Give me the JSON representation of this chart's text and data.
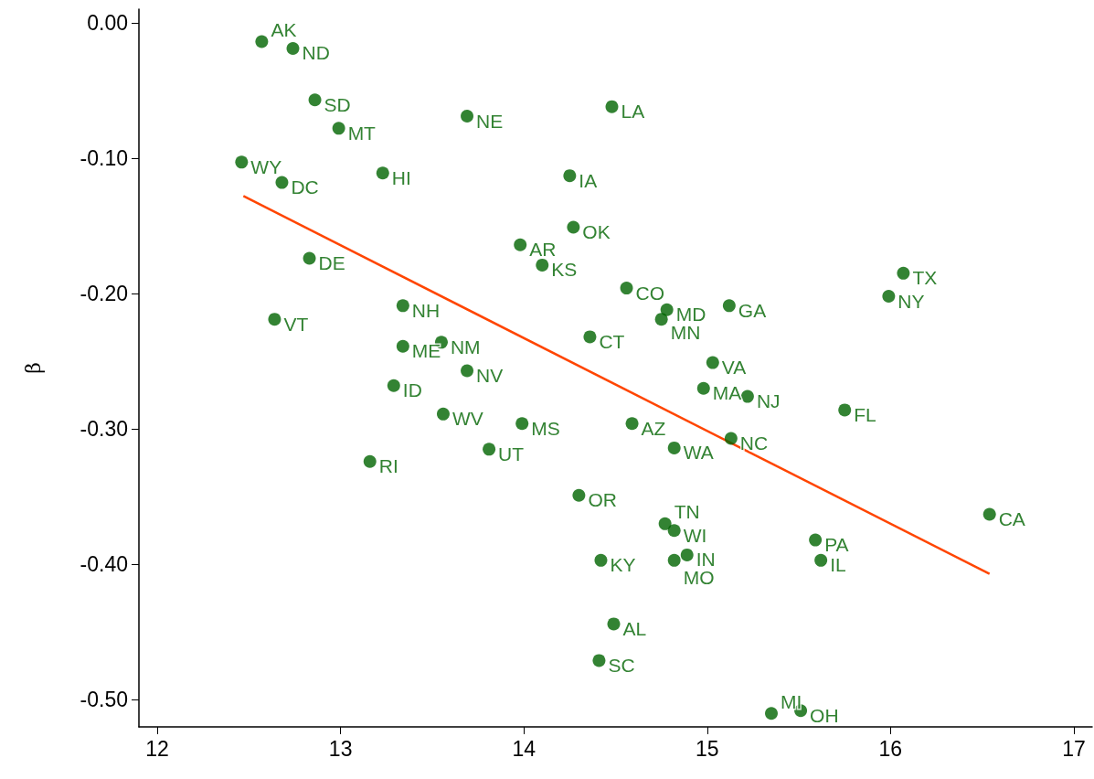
{
  "chart_data": {
    "type": "scatter",
    "ylabel": "β",
    "xlim": [
      11.9,
      17.1
    ],
    "ylim": [
      -0.52,
      0.01
    ],
    "xticks": [
      12,
      13,
      14,
      15,
      16,
      17
    ],
    "yticks": [
      {
        "value": 0,
        "label": "0.00"
      },
      {
        "value": -0.1,
        "label": "-0.10"
      },
      {
        "value": -0.2,
        "label": "-0.20"
      },
      {
        "value": -0.3,
        "label": "-0.30"
      },
      {
        "value": -0.4,
        "label": "-0.40"
      },
      {
        "value": -0.5,
        "label": "-0.50"
      }
    ],
    "grid": false,
    "marker": "circle",
    "series": [
      {
        "type": "scatter",
        "color": "#006400",
        "x": [
          12.57,
          12.74,
          12.86,
          12.99,
          13.69,
          14.48,
          12.46,
          12.68,
          13.23,
          14.25,
          14.27,
          13.98,
          14.1,
          12.83,
          14.56,
          16.07,
          15.99,
          13.34,
          14.78,
          15.12,
          14.75,
          12.64,
          13.55,
          13.34,
          14.36,
          15.03,
          13.69,
          13.29,
          14.98,
          15.22,
          15.75,
          13.56,
          13.99,
          14.59,
          15.13,
          14.82,
          13.81,
          13.16,
          14.3,
          16.54,
          14.77,
          14.82,
          15.59,
          14.89,
          14.42,
          14.82,
          15.62,
          14.49,
          14.41,
          15.35,
          15.51
        ],
        "values": [
          -0.014,
          -0.019,
          -0.057,
          -0.078,
          -0.069,
          -0.062,
          -0.103,
          -0.118,
          -0.111,
          -0.113,
          -0.151,
          -0.164,
          -0.179,
          -0.174,
          -0.196,
          -0.185,
          -0.202,
          -0.209,
          -0.212,
          -0.209,
          -0.219,
          -0.219,
          -0.236,
          -0.239,
          -0.232,
          -0.251,
          -0.257,
          -0.268,
          -0.27,
          -0.276,
          -0.286,
          -0.289,
          -0.296,
          -0.296,
          -0.307,
          -0.314,
          -0.315,
          -0.324,
          -0.349,
          -0.363,
          -0.37,
          -0.375,
          -0.382,
          -0.393,
          -0.397,
          -0.397,
          -0.397,
          -0.444,
          -0.471,
          -0.51,
          -0.508
        ]
      },
      {
        "type": "line",
        "color": "#ff4500",
        "marker": "none",
        "x": [
          12.47,
          16.54
        ],
        "values": [
          -0.128,
          -0.407
        ]
      }
    ],
    "annotations": [
      {
        "text": "AK",
        "x": 12.57,
        "y": -0.014
      },
      {
        "text": "ND",
        "x": 12.74,
        "y": -0.019
      },
      {
        "text": "SD",
        "x": 12.86,
        "y": -0.057
      },
      {
        "text": "MT",
        "x": 12.99,
        "y": -0.078
      },
      {
        "text": "NE",
        "x": 13.69,
        "y": -0.069
      },
      {
        "text": "LA",
        "x": 14.48,
        "y": -0.062
      },
      {
        "text": "WY",
        "x": 12.46,
        "y": -0.103
      },
      {
        "text": "DC",
        "x": 12.68,
        "y": -0.118
      },
      {
        "text": "HI",
        "x": 13.23,
        "y": -0.111
      },
      {
        "text": "IA",
        "x": 14.25,
        "y": -0.113
      },
      {
        "text": "OK",
        "x": 14.27,
        "y": -0.151
      },
      {
        "text": "AR",
        "x": 13.98,
        "y": -0.164
      },
      {
        "text": "KS",
        "x": 14.1,
        "y": -0.179
      },
      {
        "text": "DE",
        "x": 12.83,
        "y": -0.174
      },
      {
        "text": "CO",
        "x": 14.56,
        "y": -0.196
      },
      {
        "text": "TX",
        "x": 16.07,
        "y": -0.185
      },
      {
        "text": "NY",
        "x": 15.99,
        "y": -0.202
      },
      {
        "text": "NH",
        "x": 13.34,
        "y": -0.209
      },
      {
        "text": "MD",
        "x": 14.78,
        "y": -0.212
      },
      {
        "text": "GA",
        "x": 15.12,
        "y": -0.209
      },
      {
        "text": "MN",
        "x": 14.75,
        "y": -0.219
      },
      {
        "text": "VT",
        "x": 12.64,
        "y": -0.219
      },
      {
        "text": "NM",
        "x": 13.55,
        "y": -0.236
      },
      {
        "text": "ME",
        "x": 13.34,
        "y": -0.239
      },
      {
        "text": "CT",
        "x": 14.36,
        "y": -0.232
      },
      {
        "text": "VA",
        "x": 15.03,
        "y": -0.251
      },
      {
        "text": "NV",
        "x": 13.69,
        "y": -0.257
      },
      {
        "text": "ID",
        "x": 13.29,
        "y": -0.268
      },
      {
        "text": "MA",
        "x": 14.98,
        "y": -0.27
      },
      {
        "text": "NJ",
        "x": 15.22,
        "y": -0.276
      },
      {
        "text": "FL",
        "x": 15.75,
        "y": -0.286
      },
      {
        "text": "WV",
        "x": 13.56,
        "y": -0.289
      },
      {
        "text": "MS",
        "x": 13.99,
        "y": -0.296
      },
      {
        "text": "AZ",
        "x": 14.59,
        "y": -0.296
      },
      {
        "text": "NC",
        "x": 15.13,
        "y": -0.307
      },
      {
        "text": "WA",
        "x": 14.82,
        "y": -0.314
      },
      {
        "text": "UT",
        "x": 13.81,
        "y": -0.315
      },
      {
        "text": "RI",
        "x": 13.16,
        "y": -0.324
      },
      {
        "text": "OR",
        "x": 14.3,
        "y": -0.349
      },
      {
        "text": "CA",
        "x": 16.54,
        "y": -0.363
      },
      {
        "text": "TN",
        "x": 14.77,
        "y": -0.37
      },
      {
        "text": "WI",
        "x": 14.82,
        "y": -0.375
      },
      {
        "text": "PA",
        "x": 15.59,
        "y": -0.382
      },
      {
        "text": "IN",
        "x": 14.89,
        "y": -0.393
      },
      {
        "text": "KY",
        "x": 14.42,
        "y": -0.397
      },
      {
        "text": "MO",
        "x": 14.82,
        "y": -0.397
      },
      {
        "text": "IL",
        "x": 15.62,
        "y": -0.397
      },
      {
        "text": "AL",
        "x": 14.49,
        "y": -0.444
      },
      {
        "text": "SC",
        "x": 14.41,
        "y": -0.471
      },
      {
        "text": "MI",
        "x": 15.35,
        "y": -0.51
      },
      {
        "text": "OH",
        "x": 15.51,
        "y": -0.508
      }
    ]
  }
}
